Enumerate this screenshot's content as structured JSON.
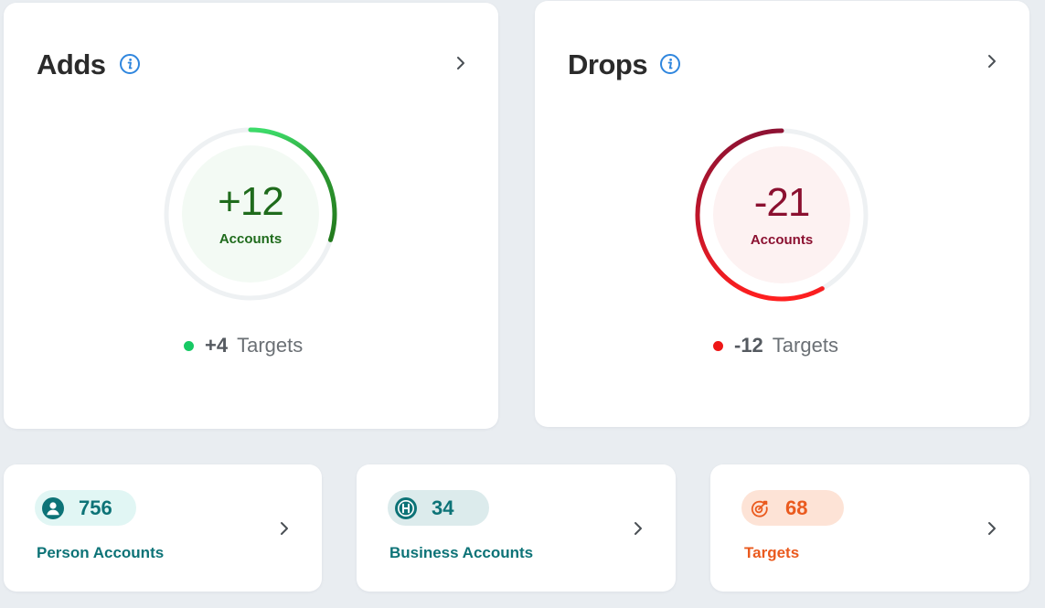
{
  "adds": {
    "title": "Adds",
    "value": "+12",
    "value_label": "Accounts",
    "progress": 0.3,
    "targets_value": "+4",
    "targets_label": "Targets",
    "colors": {
      "text": "#1f6b1c",
      "arc_start": "#3ddc6a",
      "arc_end": "#237a1d",
      "track": "#eef1f3",
      "center": "#f3faf4",
      "dot": "#17c964"
    }
  },
  "drops": {
    "title": "Drops",
    "value": "-21",
    "value_label": "Accounts",
    "progress": 0.58,
    "targets_value": "-12",
    "targets_label": "Targets",
    "colors": {
      "text": "#8b1030",
      "arc_start": "#ff1f1f",
      "arc_end": "#8e1233",
      "track": "#eef1f3",
      "center": "#fdf2f2",
      "dot": "#ee1717"
    }
  },
  "summary": {
    "person": {
      "count": "756",
      "label": "Person Accounts",
      "icon": "person-icon",
      "color": "#0d7377",
      "pill_bg": "#e1f6f4"
    },
    "business": {
      "count": "34",
      "label": "Business Accounts",
      "icon": "building-h-icon",
      "color": "#0d7377",
      "pill_bg": "#dcebec"
    },
    "targets": {
      "count": "68",
      "label": "Targets",
      "icon": "target-icon",
      "color": "#ea5a1e",
      "pill_bg": "#fde3d6"
    }
  },
  "colors": {
    "info_icon": "#2f86de",
    "chevron": "#4a4f55",
    "page_bg": "#e9edf1"
  }
}
